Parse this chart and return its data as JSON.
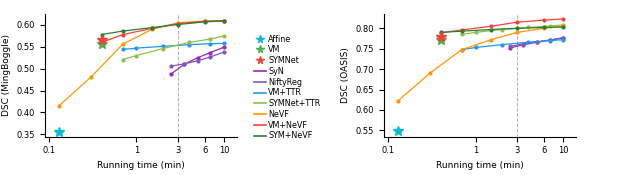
{
  "plot1": {
    "ylabel": "DSC (MingBoggle)",
    "xlabel": "Running time (min)",
    "ylim": [
      0.345,
      0.625
    ],
    "xlim": [
      0.09,
      14
    ],
    "yticks": [
      0.35,
      0.4,
      0.45,
      0.5,
      0.55,
      0.6
    ],
    "vline": 3.0,
    "series": [
      {
        "label": "Affine",
        "color": "#00bcd4",
        "marker": "*",
        "markersize": 7,
        "linestyle": "none",
        "linewidth": 0,
        "x": [
          0.13
        ],
        "y": [
          0.356
        ]
      },
      {
        "label": "VM",
        "color": "#4caf50",
        "marker": "*",
        "markersize": 7,
        "linestyle": "none",
        "linewidth": 0,
        "x": [
          0.4
        ],
        "y": [
          0.556
        ]
      },
      {
        "label": "SYMNet",
        "color": "#f44336",
        "marker": "*",
        "markersize": 7,
        "linestyle": "none",
        "linewidth": 0,
        "x": [
          0.4
        ],
        "y": [
          0.566
        ]
      },
      {
        "label": "SyN",
        "color": "#9c27b0",
        "marker": "o",
        "markersize": 2,
        "linestyle": "-",
        "linewidth": 0.9,
        "x": [
          2.5,
          3.5,
          5.0,
          7.0,
          10.0
        ],
        "y": [
          0.488,
          0.51,
          0.525,
          0.537,
          0.549
        ]
      },
      {
        "label": "NiftyReg",
        "color": "#7e57c2",
        "marker": "o",
        "markersize": 2,
        "linestyle": "-",
        "linewidth": 0.9,
        "x": [
          2.5,
          3.5,
          5.0,
          7.0,
          10.0
        ],
        "y": [
          0.506,
          0.511,
          0.518,
          0.527,
          0.538
        ]
      },
      {
        "label": "VM+TTR",
        "color": "#2196f3",
        "marker": "o",
        "markersize": 2,
        "linestyle": "-",
        "linewidth": 0.9,
        "x": [
          0.7,
          1.0,
          2.0,
          4.0,
          7.0,
          10.0
        ],
        "y": [
          0.544,
          0.547,
          0.551,
          0.555,
          0.557,
          0.558
        ]
      },
      {
        "label": "SYMNet+TTR",
        "color": "#8bc34a",
        "marker": "o",
        "markersize": 2,
        "linestyle": "-",
        "linewidth": 0.9,
        "x": [
          0.7,
          1.0,
          2.0,
          4.0,
          7.0,
          10.0
        ],
        "y": [
          0.521,
          0.53,
          0.546,
          0.56,
          0.568,
          0.575
        ]
      },
      {
        "label": "NeVF",
        "color": "#ff9800",
        "marker": "o",
        "markersize": 2,
        "linestyle": "-",
        "linewidth": 0.9,
        "x": [
          0.13,
          0.3,
          0.7,
          1.5,
          3.0,
          6.0,
          10.0
        ],
        "y": [
          0.415,
          0.48,
          0.556,
          0.59,
          0.605,
          0.609,
          0.61
        ]
      },
      {
        "label": "VM+NeVF",
        "color": "#f44336",
        "marker": "o",
        "markersize": 2,
        "linestyle": "-",
        "linewidth": 0.9,
        "x": [
          0.4,
          0.7,
          1.5,
          3.0,
          6.0,
          10.0
        ],
        "y": [
          0.56,
          0.578,
          0.592,
          0.603,
          0.608,
          0.61
        ]
      },
      {
        "label": "SYM+NeVF",
        "color": "#2e7d32",
        "marker": "o",
        "markersize": 2,
        "linestyle": "-",
        "linewidth": 0.9,
        "x": [
          0.4,
          0.7,
          1.5,
          3.0,
          6.0,
          10.0
        ],
        "y": [
          0.578,
          0.586,
          0.594,
          0.601,
          0.607,
          0.609
        ]
      }
    ]
  },
  "plot2": {
    "ylabel": "DSC (OASIS)",
    "xlabel": "Running time (min)",
    "ylim": [
      0.535,
      0.835
    ],
    "xlim": [
      0.09,
      14
    ],
    "yticks": [
      0.55,
      0.6,
      0.65,
      0.7,
      0.75,
      0.8
    ],
    "vline": 3.0,
    "series": [
      {
        "label": "Affine",
        "color": "#00bcd4",
        "marker": "*",
        "markersize": 7,
        "linestyle": "none",
        "linewidth": 0,
        "x": [
          0.13
        ],
        "y": [
          0.548
        ]
      },
      {
        "label": "VM",
        "color": "#4caf50",
        "marker": "*",
        "markersize": 7,
        "linestyle": "none",
        "linewidth": 0,
        "x": [
          0.4
        ],
        "y": [
          0.772
        ]
      },
      {
        "label": "SYMNet",
        "color": "#f44336",
        "marker": "*",
        "markersize": 7,
        "linestyle": "none",
        "linewidth": 0,
        "x": [
          0.4
        ],
        "y": [
          0.778
        ]
      },
      {
        "label": "SyN",
        "color": "#9c27b0",
        "marker": "o",
        "markersize": 2,
        "linestyle": "-",
        "linewidth": 0.9,
        "x": [
          2.5,
          3.5,
          5.0,
          7.0,
          10.0
        ],
        "y": [
          0.752,
          0.76,
          0.766,
          0.771,
          0.776
        ]
      },
      {
        "label": "NiftyReg",
        "color": "#7e57c2",
        "marker": "o",
        "markersize": 2,
        "linestyle": "-",
        "linewidth": 0.9,
        "x": [
          2.5,
          3.5,
          5.0,
          7.0,
          10.0
        ],
        "y": [
          0.756,
          0.762,
          0.766,
          0.771,
          0.777
        ]
      },
      {
        "label": "VM+TTR",
        "color": "#2196f3",
        "marker": "o",
        "markersize": 2,
        "linestyle": "-",
        "linewidth": 0.9,
        "x": [
          0.7,
          1.0,
          2.0,
          4.0,
          7.0,
          10.0
        ],
        "y": [
          0.748,
          0.753,
          0.76,
          0.766,
          0.77,
          0.772
        ]
      },
      {
        "label": "SYMNet+TTR",
        "color": "#8bc34a",
        "marker": "o",
        "markersize": 2,
        "linestyle": "-",
        "linewidth": 0.9,
        "x": [
          0.7,
          1.0,
          2.0,
          4.0,
          7.0,
          10.0
        ],
        "y": [
          0.785,
          0.79,
          0.797,
          0.802,
          0.806,
          0.808
        ]
      },
      {
        "label": "NeVF",
        "color": "#ff9800",
        "marker": "o",
        "markersize": 2,
        "linestyle": "-",
        "linewidth": 0.9,
        "x": [
          0.13,
          0.3,
          0.7,
          1.5,
          3.0,
          6.0,
          10.0
        ],
        "y": [
          0.622,
          0.69,
          0.748,
          0.772,
          0.79,
          0.8,
          0.806
        ]
      },
      {
        "label": "VM+NeVF",
        "color": "#f44336",
        "marker": "o",
        "markersize": 2,
        "linestyle": "-",
        "linewidth": 0.9,
        "x": [
          0.4,
          0.7,
          1.5,
          3.0,
          6.0,
          10.0
        ],
        "y": [
          0.789,
          0.796,
          0.805,
          0.815,
          0.82,
          0.823
        ]
      },
      {
        "label": "SYM+NeVF",
        "color": "#2e7d32",
        "marker": "o",
        "markersize": 2,
        "linestyle": "-",
        "linewidth": 0.9,
        "x": [
          0.4,
          0.7,
          1.5,
          3.0,
          6.0,
          10.0
        ],
        "y": [
          0.79,
          0.793,
          0.797,
          0.8,
          0.802,
          0.803
        ]
      }
    ]
  },
  "legend_entries": [
    {
      "label": "Affine",
      "color": "#00bcd4",
      "marker": "*",
      "linestyle": "none"
    },
    {
      "label": "VM",
      "color": "#4caf50",
      "marker": "*",
      "linestyle": "none"
    },
    {
      "label": "SYMNet",
      "color": "#f44336",
      "marker": "*",
      "linestyle": "none"
    },
    {
      "label": "SyN",
      "color": "#9c27b0",
      "marker": null,
      "linestyle": "-"
    },
    {
      "label": "NiftyReg",
      "color": "#7e57c2",
      "marker": null,
      "linestyle": "-"
    },
    {
      "label": "VM+TTR",
      "color": "#2196f3",
      "marker": null,
      "linestyle": "-"
    },
    {
      "label": "SYMNet+TTR",
      "color": "#8bc34a",
      "marker": null,
      "linestyle": "-"
    },
    {
      "label": "NeVF",
      "color": "#ff9800",
      "marker": null,
      "linestyle": "-"
    },
    {
      "label": "VM+NeVF",
      "color": "#f44336",
      "marker": null,
      "linestyle": "-"
    },
    {
      "label": "SYM+NeVF",
      "color": "#2e7d32",
      "marker": null,
      "linestyle": "-"
    }
  ],
  "xticks": [
    0.1,
    1,
    3,
    6,
    10
  ],
  "xticklabels": [
    "0.1",
    "1",
    "3",
    "6",
    "10"
  ],
  "figsize": [
    6.4,
    1.75
  ],
  "dpi": 100
}
